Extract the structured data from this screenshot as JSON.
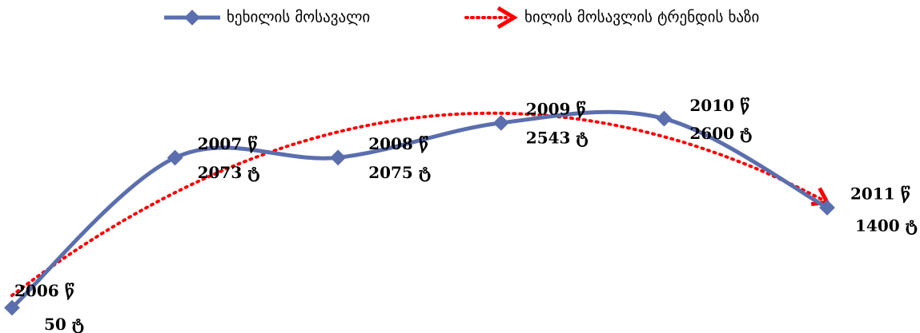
{
  "chart_data": {
    "type": "line",
    "categories": [
      "2006 წ",
      "2007 წ",
      "2008 წ",
      "2009 წ",
      "2010 წ",
      "2011 წ"
    ],
    "series": [
      {
        "name": "ხეხილის მოსავალი",
        "color": "#5b6eae",
        "values": [
          50,
          2073,
          2075,
          2543,
          2600,
          1400
        ],
        "value_labels": [
          "50 ტ",
          "2073 ტ",
          "2075 ტ",
          "2543 ტ",
          "2600 ტ",
          "1400 ტ"
        ]
      }
    ],
    "trendline": {
      "name": "ხილის მოსავლის ტრენდის ხაზი",
      "color": "#ff0000",
      "kind": "polynomial",
      "order": 2
    },
    "ylim": [
      0,
      2800
    ],
    "legend": "top"
  }
}
